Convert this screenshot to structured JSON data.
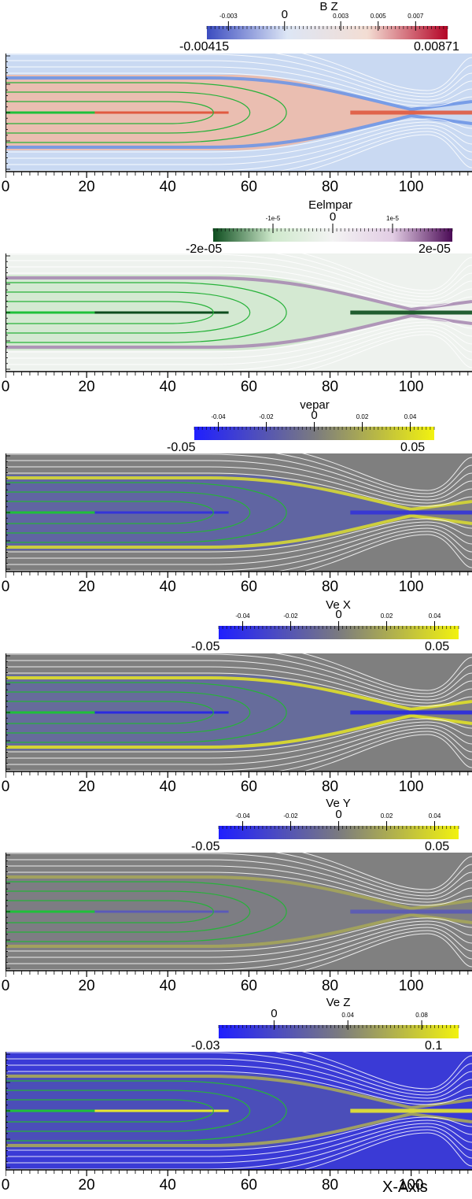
{
  "x_axis_title": "X-Axis",
  "chart_data": [
    {
      "type": "heatmap",
      "title": "B Z",
      "colormap": [
        "#3b4cc0",
        "#dde6f5",
        "#f3ddd3",
        "#b40426"
      ],
      "range": [
        -0.00415,
        0.00871
      ],
      "range_labels": [
        "-0.00415",
        "0.00871"
      ],
      "tick_values": [
        -0.003,
        0,
        0.003,
        0.005,
        0.007
      ],
      "tick_labels": [
        "-0.003",
        "0",
        "0.003",
        "0.005",
        "0.007"
      ],
      "background": "#c9d9f2",
      "field_colors": {
        "outer": "#c9d9f2",
        "lobe": "#f0b9a6",
        "edge": "#6f96e6",
        "core": "#e05a40"
      },
      "xlim": [
        0,
        115
      ],
      "x_ticks": [
        0,
        20,
        40,
        60,
        80,
        100
      ],
      "grid": false
    },
    {
      "type": "heatmap",
      "title": "Eelmpar",
      "colormap": [
        "#0d4d1e",
        "#cfe9cc",
        "#f3f3f3",
        "#e2cde4",
        "#4a0a55"
      ],
      "range": [
        -2e-05,
        2e-05
      ],
      "range_labels": [
        "-2e-05",
        "2e-05"
      ],
      "tick_values": [
        -1e-05,
        0,
        1e-05
      ],
      "tick_labels": [
        "-1e-5",
        "0",
        "1e-5"
      ],
      "background": "#eef2ee",
      "field_colors": {
        "outer": "#eef2ee",
        "lobe": "#cfe7cc",
        "edge": "#a98cb3",
        "core": "#0d4d1e"
      },
      "xlim": [
        0,
        115
      ],
      "x_ticks": [
        0,
        20,
        40,
        60,
        80,
        100
      ],
      "grid": false
    },
    {
      "type": "heatmap",
      "title": "vepar",
      "colormap": [
        "#1f1fff",
        "#7a7a80",
        "#f2f20f"
      ],
      "range": [
        -0.05,
        0.05
      ],
      "range_labels": [
        "-0.05",
        "0.05"
      ],
      "tick_values": [
        -0.04,
        -0.02,
        0,
        0.02,
        0.04
      ],
      "tick_labels": [
        "-0.04",
        "-0.02",
        "0",
        "0.02",
        "0.04"
      ],
      "background": "#7f7f7f",
      "field_colors": {
        "outer": "#7f7f7f",
        "lobe": "#5b60a8",
        "edge": "#d7d835",
        "core": "#3434d8"
      },
      "xlim": [
        0,
        115
      ],
      "x_ticks": [
        0,
        20,
        40,
        60,
        80,
        100
      ],
      "grid": false
    },
    {
      "type": "heatmap",
      "title": "Ve X",
      "colormap": [
        "#1f1fff",
        "#7a7a80",
        "#f2f20f"
      ],
      "range": [
        -0.05,
        0.05
      ],
      "range_labels": [
        "-0.05",
        "0.05"
      ],
      "tick_values": [
        -0.04,
        -0.02,
        0,
        0.02,
        0.04
      ],
      "tick_labels": [
        "-0.04",
        "-0.02",
        "0",
        "0.02",
        "0.04"
      ],
      "background": "#7f7f7f",
      "field_colors": {
        "outer": "#7f7f7f",
        "lobe": "#6168a0",
        "edge": "#e0e02a",
        "core": "#2a2ae0"
      },
      "xlim": [
        0,
        115
      ],
      "x_ticks": [
        0,
        20,
        40,
        60,
        80,
        100
      ],
      "grid": false
    },
    {
      "type": "heatmap",
      "title": "Ve Y",
      "colormap": [
        "#1f1fff",
        "#7a7a80",
        "#f2f20f"
      ],
      "range": [
        -0.05,
        0.05
      ],
      "range_labels": [
        "-0.05",
        "0.05"
      ],
      "tick_values": [
        -0.04,
        -0.02,
        0,
        0.02,
        0.04
      ],
      "tick_labels": [
        "-0.04",
        "-0.02",
        "0",
        "0.02",
        "0.04"
      ],
      "background": "#808080",
      "field_colors": {
        "outer": "#808080",
        "lobe": "#7c7c84",
        "edge": "#a5a55a",
        "core": "#5a5ab8"
      },
      "xlim": [
        0,
        115
      ],
      "x_ticks": [
        0,
        20,
        40,
        60,
        80,
        100
      ],
      "grid": false
    },
    {
      "type": "heatmap",
      "title": "Ve Z",
      "colormap": [
        "#1f1fff",
        "#7a7a80",
        "#f2f20f"
      ],
      "range": [
        -0.03,
        0.1
      ],
      "range_labels": [
        "-0.03",
        "0.1"
      ],
      "tick_values": [
        0,
        0.04,
        0.08
      ],
      "tick_labels": [
        "0",
        "0.04",
        "0.08"
      ],
      "background": "#3a3ad6",
      "field_colors": {
        "outer": "#3a3ad6",
        "lobe": "#4f52b4",
        "edge": "#a8a85a",
        "core": "#e8e830"
      },
      "xlim": [
        0,
        115
      ],
      "x_ticks": [
        0,
        20,
        40,
        60,
        80,
        100
      ],
      "grid": false
    }
  ]
}
